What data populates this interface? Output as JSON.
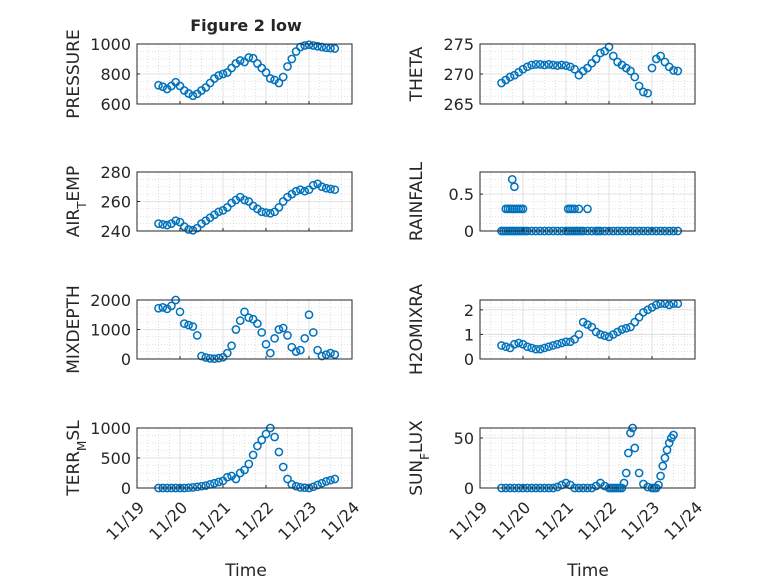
{
  "figure": {
    "title": "Figure 2 low",
    "x_tick_labels": [
      "11/19",
      "11/20",
      "11/21",
      "11/22",
      "11/23",
      "11/24"
    ],
    "xlabel": "Time",
    "marker_color": "#0072BD",
    "marker_style": "open circle",
    "grid": "on (major and minor dotted)"
  },
  "chart_data": [
    {
      "id": "pressure",
      "type": "scatter",
      "ylabel": "PRESSURE",
      "xlim": [
        0,
        5
      ],
      "ylim": [
        600,
        1000
      ],
      "yticks": [
        600,
        800,
        1000
      ],
      "ytick_labels": [
        "600",
        "800",
        "1000"
      ],
      "series": [
        {
          "x": [
            0.5,
            0.6,
            0.7,
            0.8,
            0.9,
            1.0,
            1.1,
            1.2,
            1.3,
            1.4,
            1.5,
            1.6,
            1.7,
            1.8,
            1.9,
            2.0,
            2.1,
            2.2,
            2.3,
            2.4,
            2.5,
            2.6,
            2.7,
            2.8,
            2.9,
            3.0,
            3.1,
            3.2,
            3.3,
            3.4,
            3.5,
            3.6,
            3.7,
            3.8,
            3.9,
            4.0,
            4.1,
            4.2,
            4.3,
            4.4,
            4.5,
            4.6
          ],
          "y": [
            725,
            715,
            700,
            720,
            745,
            720,
            690,
            670,
            655,
            668,
            690,
            710,
            740,
            770,
            790,
            800,
            810,
            840,
            870,
            890,
            880,
            910,
            905,
            870,
            840,
            810,
            770,
            760,
            740,
            780,
            850,
            900,
            950,
            980,
            990,
            995,
            990,
            985,
            980,
            975,
            972,
            970
          ]
        }
      ]
    },
    {
      "id": "theta",
      "type": "scatter",
      "ylabel": "THETA",
      "xlim": [
        0,
        5
      ],
      "ylim": [
        265,
        275
      ],
      "yticks": [
        265,
        270,
        275
      ],
      "ytick_labels": [
        "265",
        "270",
        "275"
      ],
      "series": [
        {
          "x": [
            0.5,
            0.6,
            0.7,
            0.8,
            0.9,
            1.0,
            1.1,
            1.2,
            1.3,
            1.4,
            1.5,
            1.6,
            1.7,
            1.8,
            1.9,
            2.0,
            2.1,
            2.2,
            2.3,
            2.4,
            2.5,
            2.6,
            2.7,
            2.8,
            2.9,
            3.0,
            3.1,
            3.2,
            3.3,
            3.4,
            3.5,
            3.6,
            3.7,
            3.8,
            3.9,
            4.0,
            4.1,
            4.2,
            4.3,
            4.4,
            4.5,
            4.6
          ],
          "y": [
            268.5,
            269,
            269.5,
            269.8,
            270.3,
            270.8,
            271.2,
            271.5,
            271.6,
            271.6,
            271.5,
            271.6,
            271.5,
            271.4,
            271.5,
            271.4,
            271.2,
            270.8,
            269.8,
            270.5,
            271,
            271.8,
            272.5,
            273.5,
            273.8,
            274.5,
            273,
            272,
            271.5,
            271,
            270.5,
            269.5,
            268,
            267,
            266.8,
            271,
            272.5,
            273,
            272,
            271.2,
            270.6,
            270.5
          ]
        }
      ]
    },
    {
      "id": "air_temp",
      "type": "scatter",
      "ylabel": "AIR_TEMP",
      "xlim": [
        0,
        5
      ],
      "ylim": [
        240,
        280
      ],
      "yticks": [
        240,
        260,
        280
      ],
      "ytick_labels": [
        "240",
        "260",
        "280"
      ],
      "series": [
        {
          "x": [
            0.5,
            0.6,
            0.7,
            0.8,
            0.9,
            1.0,
            1.1,
            1.2,
            1.3,
            1.4,
            1.5,
            1.6,
            1.7,
            1.8,
            1.9,
            2.0,
            2.1,
            2.2,
            2.3,
            2.4,
            2.5,
            2.6,
            2.7,
            2.8,
            2.9,
            3.0,
            3.1,
            3.2,
            3.3,
            3.4,
            3.5,
            3.6,
            3.7,
            3.8,
            3.9,
            4.0,
            4.1,
            4.2,
            4.3,
            4.4,
            4.5,
            4.6
          ],
          "y": [
            245,
            244.5,
            244,
            245,
            247,
            246,
            243,
            241,
            240.5,
            242,
            245,
            247,
            249,
            251,
            253,
            254,
            256,
            259,
            261,
            263,
            261,
            260,
            257,
            255,
            253,
            252.5,
            252,
            253,
            256,
            260,
            263,
            265,
            267,
            268,
            267,
            268,
            271,
            272,
            270,
            269,
            268.5,
            268
          ]
        }
      ]
    },
    {
      "id": "rainfall",
      "type": "scatter",
      "ylabel": "RAINFALL",
      "xlim": [
        0,
        5
      ],
      "ylim": [
        0,
        0.8
      ],
      "yticks": [
        0,
        0.5
      ],
      "ytick_labels": [
        "0",
        "0.5"
      ],
      "series": [
        {
          "x": [
            0.5,
            0.55,
            0.6,
            0.65,
            0.7,
            0.75,
            0.8,
            0.85,
            0.9,
            0.95,
            1.0,
            1.05,
            1.1,
            1.2,
            1.3,
            1.4,
            1.5,
            1.6,
            1.7,
            1.8,
            1.9,
            2.0,
            2.05,
            2.1,
            2.15,
            2.2,
            2.25,
            2.3,
            2.35,
            2.4,
            2.5,
            2.6,
            2.7,
            2.75,
            2.8,
            2.9,
            3.0,
            3.1,
            3.2,
            3.3,
            3.4,
            3.5,
            3.6,
            3.7,
            3.8,
            3.9,
            4.0,
            4.1,
            4.2,
            4.3,
            4.4,
            4.5,
            4.6,
            0.6,
            0.65,
            0.7,
            0.75,
            0.8,
            0.85,
            0.9,
            0.95,
            1.0,
            0.75,
            0.8,
            2.05,
            2.1,
            2.15,
            2.2,
            2.3,
            2.5
          ],
          "y": [
            0,
            0,
            0,
            0,
            0,
            0,
            0,
            0,
            0,
            0,
            0,
            0,
            0,
            0,
            0,
            0,
            0,
            0,
            0,
            0,
            0,
            0,
            0,
            0,
            0,
            0,
            0,
            0,
            0,
            0,
            0,
            0,
            0,
            0,
            0,
            0,
            0,
            0,
            0,
            0,
            0,
            0,
            0,
            0,
            0,
            0,
            0,
            0,
            0,
            0,
            0,
            0,
            0,
            0.3,
            0.3,
            0.3,
            0.3,
            0.3,
            0.3,
            0.3,
            0.3,
            0.3,
            0.7,
            0.6,
            0.3,
            0.3,
            0.3,
            0.3,
            0.3,
            0.3
          ]
        }
      ]
    },
    {
      "id": "mixdepth",
      "type": "scatter",
      "ylabel": "MIXDEPTH",
      "xlim": [
        0,
        5
      ],
      "ylim": [
        0,
        2000
      ],
      "yticks": [
        0,
        1000,
        2000
      ],
      "ytick_labels": [
        "0",
        "1000",
        "2000"
      ],
      "series": [
        {
          "x": [
            0.5,
            0.6,
            0.7,
            0.8,
            0.9,
            1.0,
            1.1,
            1.2,
            1.3,
            1.4,
            1.5,
            1.6,
            1.7,
            1.8,
            1.9,
            2.0,
            2.1,
            2.2,
            2.3,
            2.4,
            2.5,
            2.6,
            2.7,
            2.8,
            2.9,
            3.0,
            3.1,
            3.2,
            3.3,
            3.4,
            3.5,
            3.6,
            3.7,
            3.8,
            3.9,
            4.0,
            4.1,
            4.2,
            4.3,
            4.4,
            4.5,
            4.6
          ],
          "y": [
            1720,
            1750,
            1700,
            1800,
            2000,
            1600,
            1200,
            1150,
            1100,
            800,
            100,
            50,
            20,
            10,
            30,
            60,
            200,
            450,
            1000,
            1300,
            1600,
            1400,
            1350,
            1200,
            900,
            500,
            200,
            700,
            1000,
            1050,
            800,
            400,
            250,
            300,
            700,
            1500,
            900,
            300,
            100,
            150,
            200,
            150
          ]
        }
      ]
    },
    {
      "id": "h2omixra",
      "type": "scatter",
      "ylabel": "H2OMIXRA",
      "xlim": [
        0,
        5
      ],
      "ylim": [
        0,
        2.4
      ],
      "yticks": [
        0,
        1,
        2
      ],
      "ytick_labels": [
        "0",
        "1",
        "2"
      ],
      "series": [
        {
          "x": [
            0.5,
            0.6,
            0.7,
            0.8,
            0.9,
            1.0,
            1.1,
            1.2,
            1.3,
            1.4,
            1.5,
            1.6,
            1.7,
            1.8,
            1.9,
            2.0,
            2.1,
            2.2,
            2.3,
            2.4,
            2.5,
            2.6,
            2.7,
            2.8,
            2.9,
            3.0,
            3.1,
            3.2,
            3.3,
            3.4,
            3.5,
            3.6,
            3.7,
            3.8,
            3.9,
            4.0,
            4.1,
            4.2,
            4.3,
            4.4,
            4.5,
            4.6
          ],
          "y": [
            0.55,
            0.5,
            0.45,
            0.6,
            0.65,
            0.6,
            0.5,
            0.45,
            0.4,
            0.4,
            0.45,
            0.5,
            0.55,
            0.6,
            0.65,
            0.7,
            0.7,
            0.8,
            1.0,
            1.5,
            1.4,
            1.3,
            1.1,
            1.0,
            0.95,
            0.9,
            1.0,
            1.1,
            1.2,
            1.25,
            1.3,
            1.5,
            1.7,
            1.9,
            2.0,
            2.1,
            2.2,
            2.25,
            2.25,
            2.2,
            2.25,
            2.25
          ]
        }
      ]
    },
    {
      "id": "terr_msl",
      "type": "scatter",
      "ylabel": "TERR_MSL",
      "xlim": [
        0,
        5
      ],
      "ylim": [
        0,
        1000
      ],
      "yticks": [
        0,
        500,
        1000
      ],
      "ytick_labels": [
        "0",
        "500",
        "1000"
      ],
      "series": [
        {
          "x": [
            0.5,
            0.6,
            0.7,
            0.8,
            0.9,
            1.0,
            1.1,
            1.2,
            1.3,
            1.4,
            1.5,
            1.6,
            1.7,
            1.8,
            1.9,
            2.0,
            2.1,
            2.2,
            2.3,
            2.4,
            2.5,
            2.6,
            2.7,
            2.8,
            2.9,
            3.0,
            3.1,
            3.2,
            3.3,
            3.4,
            3.5,
            3.6,
            3.7,
            3.8,
            3.9,
            4.0,
            4.1,
            4.2,
            4.3,
            4.4,
            4.5,
            4.6
          ],
          "y": [
            0,
            0,
            0,
            0,
            0,
            0,
            0,
            5,
            10,
            20,
            30,
            40,
            60,
            80,
            100,
            120,
            180,
            200,
            150,
            250,
            300,
            400,
            550,
            700,
            800,
            900,
            1000,
            850,
            600,
            350,
            150,
            60,
            30,
            10,
            5,
            0,
            20,
            50,
            80,
            110,
            130,
            150
          ]
        }
      ]
    },
    {
      "id": "sun_flux",
      "type": "scatter",
      "ylabel": "SUN_FLUX",
      "xlim": [
        0,
        5
      ],
      "ylim": [
        0,
        60
      ],
      "yticks": [
        0,
        50
      ],
      "ytick_labels": [
        "0",
        "50"
      ],
      "series": [
        {
          "x": [
            0.5,
            0.6,
            0.7,
            0.8,
            0.9,
            1.0,
            1.1,
            1.2,
            1.3,
            1.4,
            1.5,
            1.6,
            1.7,
            1.8,
            1.9,
            2.0,
            2.1,
            2.2,
            2.3,
            2.4,
            2.5,
            2.6,
            2.7,
            2.8,
            2.9,
            3.0,
            3.05,
            3.1,
            3.15,
            3.2,
            3.25,
            3.3,
            3.35,
            3.4,
            3.45,
            3.5,
            3.55,
            3.6,
            3.7,
            3.8,
            3.9,
            4.0,
            4.05,
            4.1,
            4.15,
            4.2,
            4.25,
            4.3,
            4.35,
            4.4,
            4.45,
            4.5
          ],
          "y": [
            0,
            0,
            0,
            0,
            0,
            0,
            0,
            0,
            0,
            0,
            0,
            0,
            0,
            1,
            3,
            5,
            3,
            0,
            0,
            0,
            0,
            0,
            2,
            5,
            2,
            0,
            0,
            0,
            0,
            0,
            0,
            0,
            5,
            15,
            35,
            55,
            60,
            40,
            15,
            4,
            1,
            0,
            0,
            0,
            3,
            12,
            22,
            30,
            38,
            45,
            50,
            53
          ]
        }
      ]
    }
  ]
}
